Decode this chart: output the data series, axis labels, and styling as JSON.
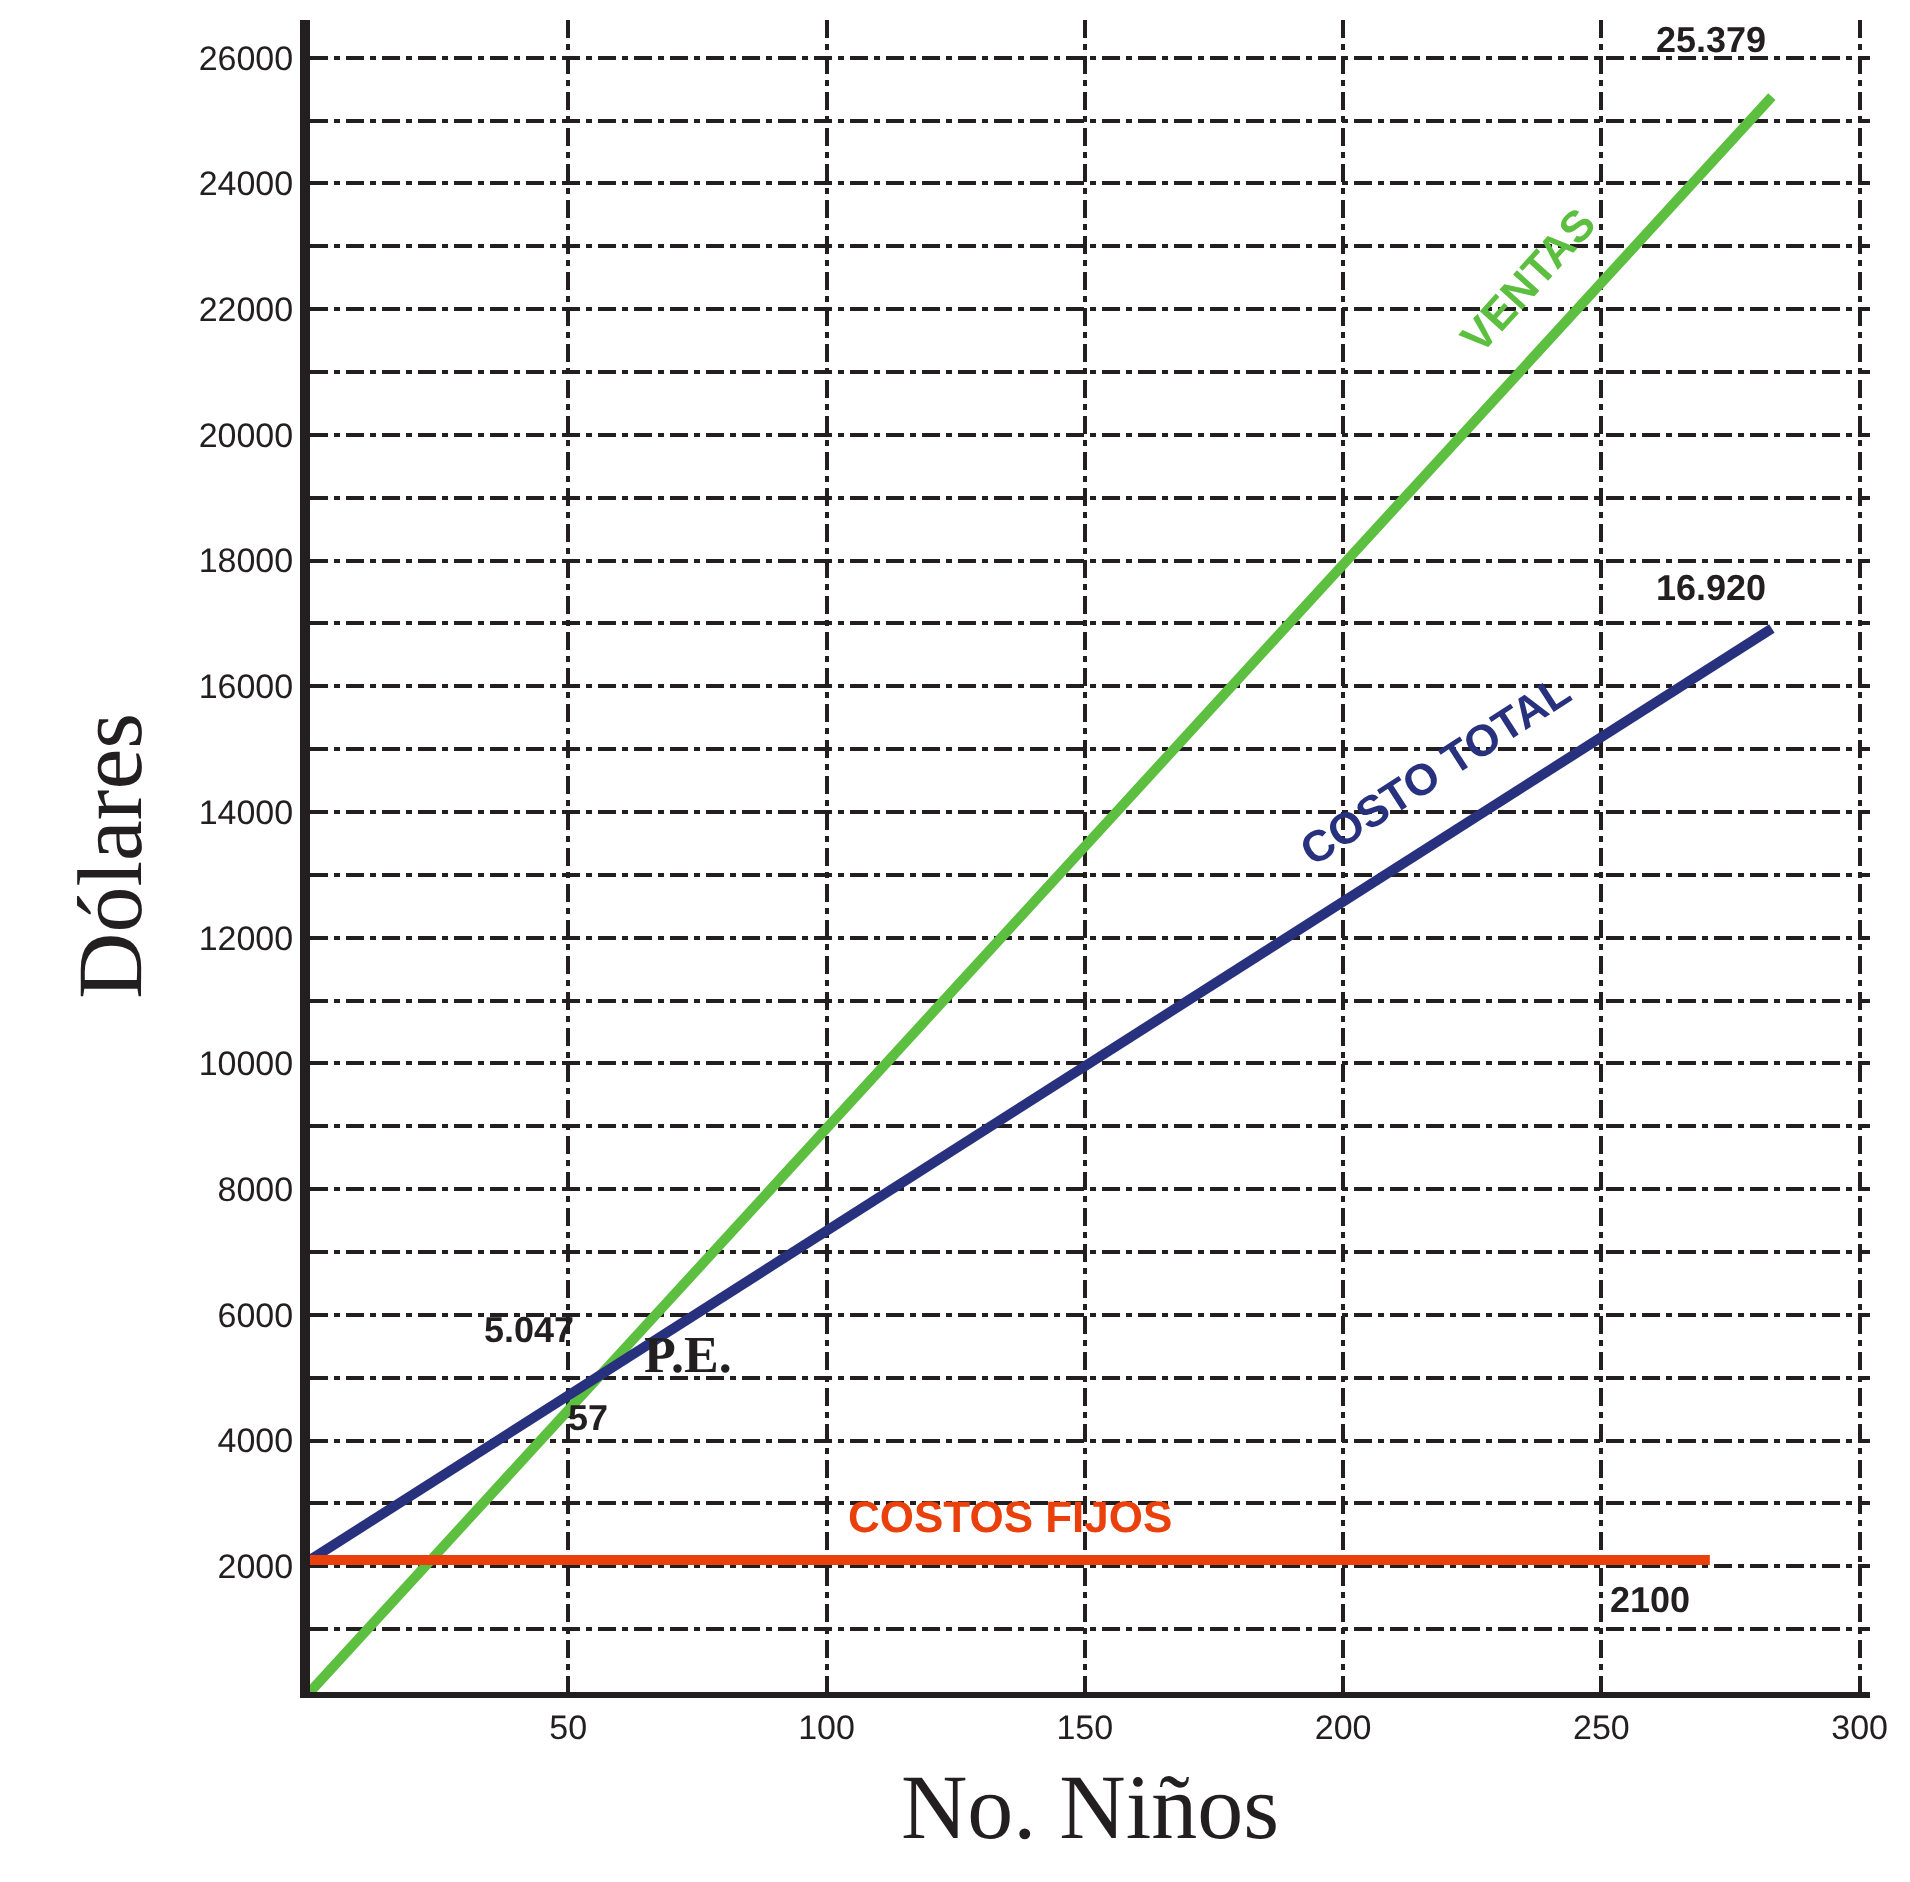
{
  "chart_data": {
    "type": "line",
    "xlabel": "No. Niños",
    "ylabel": "Dólares",
    "xlim": [
      0,
      302
    ],
    "ylim": [
      0,
      26600
    ],
    "xticks": [
      50,
      100,
      150,
      200,
      250,
      300
    ],
    "yticks": [
      {
        "value": 1000,
        "label": null
      },
      2000,
      {
        "value": 3000,
        "label": null
      },
      4000,
      {
        "value": 5000,
        "label": null
      },
      6000,
      {
        "value": 7000,
        "label": null
      },
      8000,
      {
        "value": 9000,
        "label": null
      },
      10000,
      {
        "value": 11000,
        "label": null
      },
      12000,
      {
        "value": 13000,
        "label": null
      },
      14000,
      {
        "value": 15000,
        "label": null
      },
      16000,
      {
        "value": 17000,
        "label": null
      },
      18000,
      {
        "value": 19000,
        "label": null
      },
      20000,
      {
        "value": 21000,
        "label": null
      },
      22000,
      {
        "value": 23000,
        "label": null
      },
      24000,
      {
        "value": 25000,
        "label": null
      },
      26000
    ],
    "grid": true,
    "legend": false,
    "marker": "none",
    "line_style": "solid",
    "series": [
      {
        "name": "VENTAS",
        "color": "#5cbf3f",
        "x": [
          0,
          283
        ],
        "values": [
          0,
          25379
        ]
      },
      {
        "name": "COSTO TOTAL",
        "color": "#28317e",
        "x": [
          0,
          283
        ],
        "values": [
          2100,
          16920
        ]
      },
      {
        "name": "COSTOS FIJOS",
        "color": "#e9400c",
        "x": [
          0,
          271
        ],
        "values": [
          2100,
          2100
        ]
      }
    ],
    "annotations": [
      {
        "text": "25.379",
        "x": 283,
        "y": 25379
      },
      {
        "text": "16.920",
        "x": 283,
        "y": 16920
      },
      {
        "text": "5.047",
        "x": 57,
        "y": 5047
      },
      {
        "text": "57",
        "x": 57,
        "y": 5047
      },
      {
        "text": "P.E.",
        "x": 57,
        "y": 5047
      },
      {
        "text": "2100",
        "x": 271,
        "y": 2100
      }
    ]
  }
}
